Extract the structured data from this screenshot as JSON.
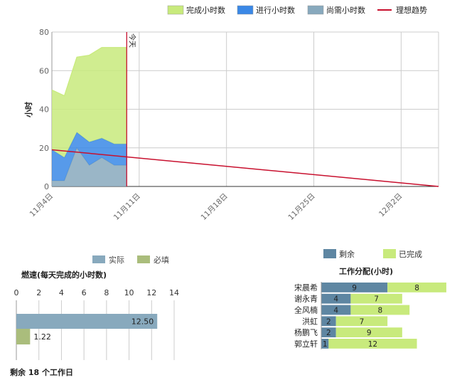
{
  "chart_data": [
    {
      "type": "area",
      "ylabel": "小时",
      "ylim": [
        0,
        80
      ],
      "yticks": [
        0,
        20,
        40,
        60,
        80
      ],
      "x": [
        "11月4日",
        "11月5日",
        "11月6日",
        "11月7日",
        "11月8日",
        "11月9日",
        "11月10日"
      ],
      "xticks": [
        "11月4日",
        "11月11日",
        "11月18日",
        "11月25日",
        "12月2日"
      ],
      "x_end": "12月5日",
      "series": [
        {
          "name": "尚需小时数",
          "color": "#88a9bd",
          "values": [
            3,
            3,
            20,
            11,
            15,
            11,
            11
          ]
        },
        {
          "name": "进行小时数",
          "color": "#3a88e6",
          "values": [
            16,
            12,
            8,
            12,
            10,
            11,
            11
          ]
        },
        {
          "name": "完成小时数",
          "color": "#c8ea7c",
          "values": [
            31,
            32,
            39,
            45,
            47,
            50,
            50
          ]
        }
      ],
      "ideal": {
        "name": "理想趋势",
        "color": "#c8102e",
        "from": [
          "11月4日",
          19
        ],
        "to": [
          "12月5日",
          0
        ]
      },
      "today": {
        "label": "今天",
        "x": "11月10日",
        "color": "#c8102e"
      }
    },
    {
      "type": "bar",
      "orientation": "horizontal",
      "title": "燃速(每天完成的小时数)",
      "xlim": [
        0,
        14
      ],
      "xticks": [
        0,
        2,
        4,
        6,
        8,
        10,
        12,
        14
      ],
      "series": [
        {
          "name": "实际",
          "color": "#88a9bd",
          "value": 12.5,
          "label": "12.50"
        },
        {
          "name": "必填",
          "color": "#aabd7c",
          "value": 1.22,
          "label": "1.22"
        }
      ]
    },
    {
      "type": "bar",
      "orientation": "horizontal",
      "stacked": true,
      "title": "工作分配(小时)",
      "categories": [
        "宋晨希",
        "谢永青",
        "全风楠",
        "洪虹",
        "杨鹏飞",
        "郭立轩"
      ],
      "series": [
        {
          "name": "剩余",
          "color": "#5e86a2",
          "values": [
            9,
            4,
            4,
            2,
            2,
            1
          ]
        },
        {
          "name": "已完成",
          "color": "#c8ea7c",
          "values": [
            8,
            7,
            8,
            7,
            9,
            12
          ]
        }
      ]
    }
  ],
  "footer": "剩余 18 个工作日"
}
